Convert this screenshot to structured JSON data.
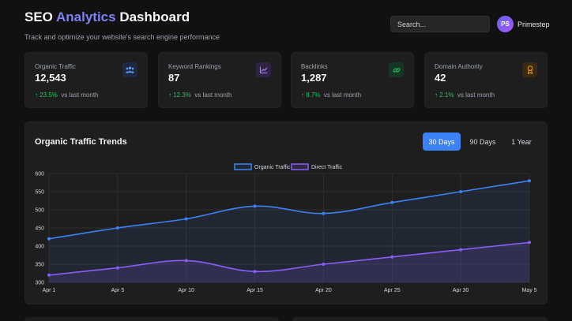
{
  "header": {
    "title_pre": "SEO ",
    "title_accent": "Analytics",
    "title_post": " Dashboard",
    "subtitle": "Track and optimize your website's search engine performance"
  },
  "search": {
    "placeholder": "Search..."
  },
  "user": {
    "initials": "PS",
    "name": "Primestep"
  },
  "colors": {
    "accent": "#3b82f6",
    "organic": "#3b82f6",
    "direct": "#8b5cf6",
    "positive": "#22c55e"
  },
  "cards": [
    {
      "label": "Organic Traffic",
      "value": "12,543",
      "change": "23.5%",
      "suffix": "vs last month",
      "icon": "users-icon"
    },
    {
      "label": "Keyword Rankings",
      "value": "87",
      "change": "12.3%",
      "suffix": "vs last month",
      "icon": "chart-line-icon"
    },
    {
      "label": "Backlinks",
      "value": "1,287",
      "change": "8.7%",
      "suffix": "vs last month",
      "icon": "link-icon"
    },
    {
      "label": "Domain Authority",
      "value": "42",
      "change": "2.1%",
      "suffix": "vs last month",
      "icon": "award-icon"
    }
  ],
  "trends": {
    "title": "Organic Traffic Trends",
    "ranges": [
      "30 Days",
      "90 Days",
      "1 Year"
    ],
    "active_range": "30 Days"
  },
  "chart_data": {
    "type": "line",
    "x": [
      "Apr 1",
      "Apr 5",
      "Apr 10",
      "Apr 15",
      "Apr 20",
      "Apr 25",
      "Apr 30",
      "May 5"
    ],
    "series": [
      {
        "name": "Organic Traffic",
        "values": [
          420,
          450,
          475,
          510,
          490,
          520,
          550,
          580
        ]
      },
      {
        "name": "Direct Traffic",
        "values": [
          320,
          340,
          360,
          330,
          350,
          370,
          390,
          410
        ]
      }
    ],
    "ylim": [
      300,
      600
    ],
    "yticks": [
      300,
      350,
      400,
      450,
      500,
      550,
      600
    ],
    "grid": true,
    "legend": "top-center",
    "area_fill": true
  }
}
